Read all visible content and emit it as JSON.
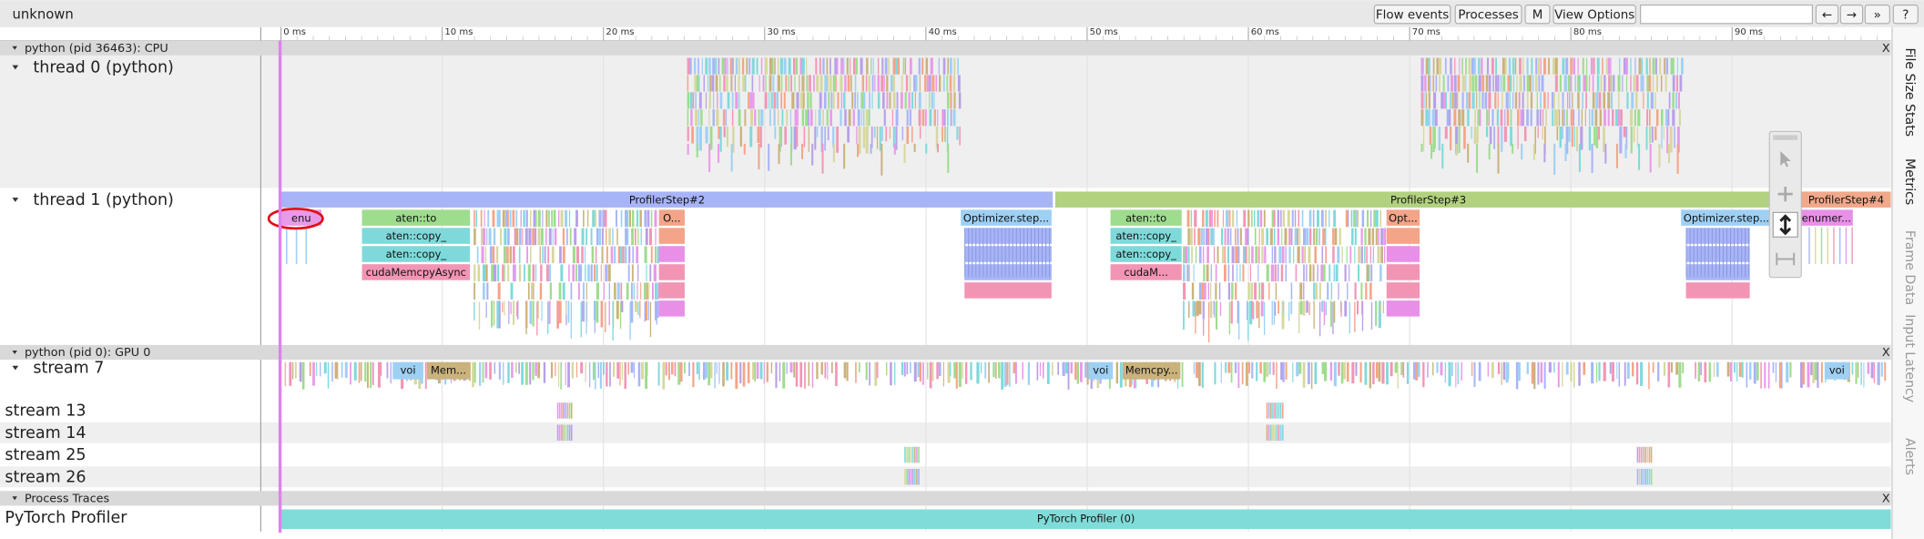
{
  "header": {
    "title": "unknown"
  },
  "toolbar": {
    "buttons": [
      "Flow events",
      "Processes",
      "M",
      "View Options",
      "←",
      "→",
      "»",
      "?"
    ]
  },
  "ruler": {
    "ticks": [
      "0 ms",
      "10 ms",
      "20 ms",
      "30 ms",
      "40 ms",
      "50 ms",
      "60 ms",
      "70 ms",
      "80 ms",
      "90 ms"
    ]
  },
  "processes": [
    {
      "title": "python (pid 36463): CPU",
      "close": "X",
      "tracks": [
        {
          "label": "thread 0 (python)"
        },
        {
          "label": "thread 1 (python)",
          "slices": [
            "ProfilerStep#2",
            "ProfilerStep#3",
            "ProfilerStep#4",
            "enu",
            "aten::to",
            "aten::copy_",
            "aten::copy_",
            "cudaMemcpyAsync",
            "O...",
            "Optimizer.step...",
            "aten::to",
            "aten::copy_",
            "aten::copy_",
            "cudaM...",
            "Opt...",
            "Optimizer.step...",
            "enumer..."
          ]
        }
      ]
    },
    {
      "title": "python (pid 0): GPU 0",
      "close": "X",
      "tracks": [
        {
          "label": "stream 7",
          "slices": [
            "voi",
            "Mem...",
            "voi",
            "Memcpy...",
            "voi"
          ]
        },
        {
          "label": "stream 13"
        },
        {
          "label": "stream 14"
        },
        {
          "label": "stream 25"
        },
        {
          "label": "stream 26"
        }
      ]
    },
    {
      "title": "Process Traces",
      "close": "X",
      "tracks": [
        {
          "label": "PyTorch Profiler",
          "slices": [
            "PyTorch Profiler (0)"
          ]
        }
      ]
    }
  ],
  "side_tabs": [
    "File Size Stats",
    "Metrics",
    "Frame Data",
    "Input Latency",
    "Alerts"
  ]
}
